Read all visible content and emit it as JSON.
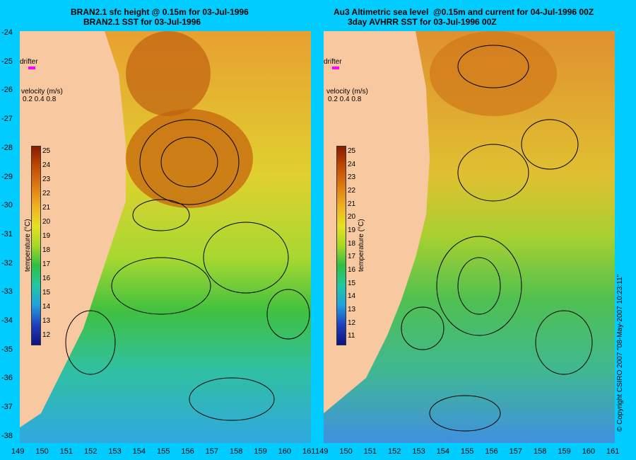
{
  "left": {
    "title_line1": "BRAN2.1 sfc height @ 0.15m for 03-Jul-1996",
    "title_line2": "BRAN2.1 SST for 03-Jul-1996",
    "drifter": "drifter",
    "velocity_label": "velocity (m/s)",
    "velocity_scale": "0.2 0.4 0.8",
    "colorbar_ticks": [
      "25",
      "24",
      "23",
      "22",
      "21",
      "20",
      "19",
      "18",
      "17",
      "16",
      "15",
      "14",
      "13",
      "12"
    ],
    "colorbar_title": "temperature (°C)"
  },
  "right": {
    "title_line1": "Au3 Altimetric sea level  @0.15m and current for 04-Jul-1996 00Z",
    "title_line2": "3day AVHRR SST for 03-Jul-1996 00Z",
    "drifter": "drifter",
    "velocity_label": "velocity (m/s)",
    "velocity_scale": "0.2 0.4 0.8",
    "colorbar_ticks": [
      "25",
      "24",
      "23",
      "22",
      "21",
      "20",
      "19",
      "18",
      "17",
      "16",
      "15",
      "14",
      "13",
      "12",
      "11"
    ],
    "colorbar_title": "temperature (°C)"
  },
  "y_ticks": [
    "-24",
    "-25",
    "-26",
    "-27",
    "-28",
    "-29",
    "-30",
    "-31",
    "-32",
    "-33",
    "-34",
    "-35",
    "-36",
    "-37",
    "-38"
  ],
  "x_ticks": [
    "149",
    "150",
    "151",
    "152",
    "153",
    "154",
    "155",
    "156",
    "157",
    "158",
    "159",
    "160",
    "161"
  ],
  "copyright": "© Copyright CSIRO 2007 \"08-May-2007 10:23:11\"",
  "colors": {
    "background": "#00ccff",
    "land": "#f8c8a0",
    "drifter_marker": "#ff00ff"
  }
}
